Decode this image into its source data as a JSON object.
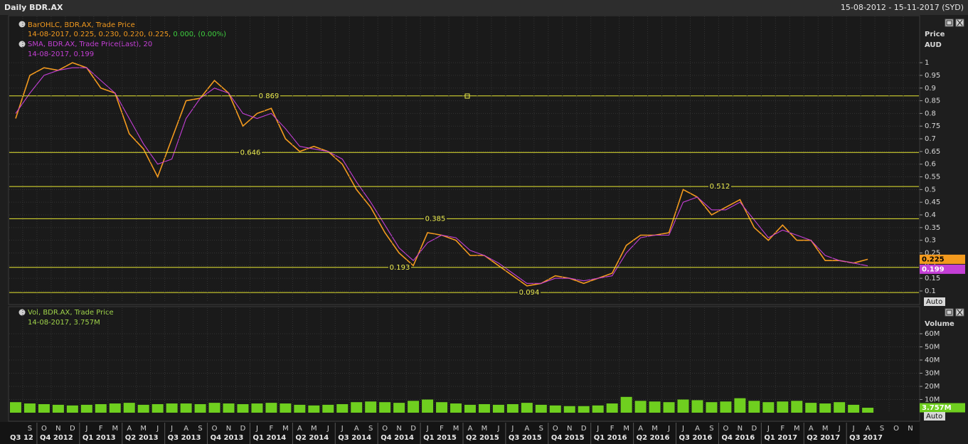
{
  "header": {
    "title": "Daily BDR.AX",
    "range": "15-08-2012 - 15-11-2017 (SYD)"
  },
  "chart_data": [
    {
      "type": "line",
      "x": [
        "2012-08",
        "2012-09",
        "2012-10",
        "2012-11",
        "2012-12",
        "2013-01",
        "2013-02",
        "2013-03",
        "2013-04",
        "2013-05",
        "2013-06",
        "2013-07",
        "2013-08",
        "2013-09",
        "2013-10",
        "2013-11",
        "2013-12",
        "2014-01",
        "2014-02",
        "2014-03",
        "2014-04",
        "2014-05",
        "2014-06",
        "2014-07",
        "2014-08",
        "2014-09",
        "2014-10",
        "2014-11",
        "2014-12",
        "2015-01",
        "2015-02",
        "2015-03",
        "2015-04",
        "2015-05",
        "2015-06",
        "2015-07",
        "2015-08",
        "2015-09",
        "2015-10",
        "2015-11",
        "2015-12",
        "2016-01",
        "2016-02",
        "2016-03",
        "2016-04",
        "2016-05",
        "2016-06",
        "2016-07",
        "2016-08",
        "2016-09",
        "2016-10",
        "2016-11",
        "2016-12",
        "2017-01",
        "2017-02",
        "2017-03",
        "2017-04",
        "2017-05",
        "2017-06",
        "2017-07",
        "2017-08"
      ],
      "series": [
        {
          "name": "BarOHLC, BDR.AX, Trade Price",
          "color": "#f39a1e",
          "readout": "14-08-2017, 0.225, 0.230, 0.220, 0.225, ",
          "change": "0.000, (0.00%)",
          "change_color": "#3ecf3e",
          "values": [
            0.78,
            0.95,
            0.98,
            0.97,
            1.0,
            0.98,
            0.9,
            0.88,
            0.72,
            0.66,
            0.55,
            0.7,
            0.85,
            0.86,
            0.93,
            0.88,
            0.75,
            0.8,
            0.82,
            0.7,
            0.65,
            0.67,
            0.65,
            0.6,
            0.5,
            0.43,
            0.33,
            0.25,
            0.2,
            0.33,
            0.32,
            0.3,
            0.24,
            0.24,
            0.2,
            0.16,
            0.12,
            0.13,
            0.16,
            0.15,
            0.13,
            0.15,
            0.17,
            0.28,
            0.32,
            0.32,
            0.33,
            0.5,
            0.47,
            0.4,
            0.43,
            0.46,
            0.35,
            0.3,
            0.36,
            0.3,
            0.3,
            0.22,
            0.22,
            0.21,
            0.225
          ]
        },
        {
          "name": "SMA, BDR.AX, Trade Price(Last),  20",
          "color": "#c43fd6",
          "readout": "14-08-2017, 0.199",
          "values": [
            0.8,
            0.88,
            0.95,
            0.97,
            0.98,
            0.98,
            0.93,
            0.88,
            0.78,
            0.68,
            0.6,
            0.62,
            0.78,
            0.86,
            0.9,
            0.88,
            0.8,
            0.78,
            0.8,
            0.74,
            0.67,
            0.66,
            0.65,
            0.62,
            0.53,
            0.45,
            0.36,
            0.27,
            0.22,
            0.29,
            0.32,
            0.31,
            0.26,
            0.24,
            0.21,
            0.17,
            0.13,
            0.13,
            0.15,
            0.15,
            0.14,
            0.15,
            0.16,
            0.25,
            0.31,
            0.32,
            0.32,
            0.45,
            0.47,
            0.42,
            0.42,
            0.45,
            0.38,
            0.31,
            0.34,
            0.32,
            0.3,
            0.24,
            0.22,
            0.21,
            0.199
          ]
        }
      ],
      "y_axis_title": "Price",
      "y_axis_unit": "AUD",
      "autoscale_label": "Auto",
      "ylim": [
        0.055,
        1.177
      ],
      "yticks": [
        0.1,
        0.15,
        0.2,
        0.25,
        0.3,
        0.35,
        0.4,
        0.45,
        0.5,
        0.55,
        0.6,
        0.65,
        0.7,
        0.75,
        0.8,
        0.85,
        0.9,
        0.95,
        1
      ],
      "levels": [
        0.869,
        0.646,
        0.512,
        0.385,
        0.193,
        0.094
      ],
      "level_color": "#e6e632",
      "xlim": [
        "2012-08",
        "2017-11"
      ],
      "grid": true
    },
    {
      "type": "bar",
      "x": [
        "2012-08",
        "2012-09",
        "2012-10",
        "2012-11",
        "2012-12",
        "2013-01",
        "2013-02",
        "2013-03",
        "2013-04",
        "2013-05",
        "2013-06",
        "2013-07",
        "2013-08",
        "2013-09",
        "2013-10",
        "2013-11",
        "2013-12",
        "2014-01",
        "2014-02",
        "2014-03",
        "2014-04",
        "2014-05",
        "2014-06",
        "2014-07",
        "2014-08",
        "2014-09",
        "2014-10",
        "2014-11",
        "2014-12",
        "2015-01",
        "2015-02",
        "2015-03",
        "2015-04",
        "2015-05",
        "2015-06",
        "2015-07",
        "2015-08",
        "2015-09",
        "2015-10",
        "2015-11",
        "2015-12",
        "2016-01",
        "2016-02",
        "2016-03",
        "2016-04",
        "2016-05",
        "2016-06",
        "2016-07",
        "2016-08",
        "2016-09",
        "2016-10",
        "2016-11",
        "2016-12",
        "2017-01",
        "2017-02",
        "2017-03",
        "2017-04",
        "2017-05",
        "2017-06",
        "2017-07",
        "2017-08"
      ],
      "series": [
        {
          "name": "Vol, BDR.AX, Trade Price",
          "color": "#6fcf1f",
          "readout": "14-08-2017, 3.757M",
          "values": [
            8000000,
            7000000,
            6500000,
            6000000,
            5500000,
            6000000,
            6500000,
            7000000,
            7500000,
            6000000,
            6500000,
            7000000,
            7000000,
            6500000,
            7500000,
            7000000,
            6500000,
            7000000,
            7500000,
            7000000,
            6000000,
            5500000,
            6000000,
            6500000,
            8000000,
            8500000,
            8000000,
            7500000,
            9000000,
            10000000,
            8000000,
            7000000,
            6000000,
            6500000,
            6000000,
            6500000,
            7500000,
            6000000,
            5500000,
            5000000,
            5000000,
            5500000,
            7000000,
            12000000,
            9000000,
            8500000,
            8000000,
            10000000,
            9500000,
            8000000,
            8500000,
            11000000,
            9000000,
            8000000,
            8500000,
            9000000,
            7500000,
            7000000,
            8000000,
            6000000,
            3757000
          ],
          "value_labels": [
            null,
            null,
            null,
            null,
            null,
            null,
            null,
            null,
            null,
            null,
            null,
            null,
            null,
            null,
            null,
            null,
            null,
            null,
            null,
            null,
            null,
            null,
            null,
            null,
            null,
            null,
            null,
            null,
            null,
            null,
            null,
            null,
            null,
            null,
            null,
            null,
            null,
            null,
            null,
            null,
            null,
            null,
            null,
            null,
            null,
            null,
            null,
            null,
            null,
            null,
            null,
            null,
            null,
            null,
            null,
            null,
            null,
            null,
            null,
            null,
            "3.757M"
          ]
        }
      ],
      "y_axis_title": "Volume",
      "autoscale_label": "Auto",
      "ylim": [
        0,
        80000000
      ],
      "yticks": [
        {
          "value": 10000000,
          "label": "10M"
        },
        {
          "value": 20000000,
          "label": "20M"
        },
        {
          "value": 30000000,
          "label": "30M"
        },
        {
          "value": 40000000,
          "label": "40M"
        },
        {
          "value": 50000000,
          "label": "50M"
        },
        {
          "value": 60000000,
          "label": "60M"
        }
      ],
      "xlim": [
        "2012-08",
        "2017-11"
      ],
      "grid": true,
      "xticks": [
        {
          "value": "2012-09",
          "label": "S"
        },
        {
          "value": "2012-10",
          "label": "O"
        },
        {
          "value": "2012-11",
          "label": "N"
        },
        {
          "value": "2012-12",
          "label": "D"
        },
        {
          "value": "2013-01",
          "label": "J"
        },
        {
          "value": "2013-02",
          "label": "F"
        },
        {
          "value": "2013-03",
          "label": "M"
        },
        {
          "value": "2013-04",
          "label": "A"
        },
        {
          "value": "2013-05",
          "label": "M"
        },
        {
          "value": "2013-06",
          "label": "J"
        },
        {
          "value": "2013-07",
          "label": "J"
        },
        {
          "value": "2013-08",
          "label": "A"
        },
        {
          "value": "2013-09",
          "label": "S"
        },
        {
          "value": "2013-10",
          "label": "O"
        },
        {
          "value": "2013-11",
          "label": "N"
        },
        {
          "value": "2013-12",
          "label": "D"
        },
        {
          "value": "2014-01",
          "label": "J"
        },
        {
          "value": "2014-02",
          "label": "F"
        },
        {
          "value": "2014-03",
          "label": "M"
        },
        {
          "value": "2014-04",
          "label": "A"
        },
        {
          "value": "2014-05",
          "label": "M"
        },
        {
          "value": "2014-06",
          "label": "J"
        },
        {
          "value": "2014-07",
          "label": "J"
        },
        {
          "value": "2014-08",
          "label": "A"
        },
        {
          "value": "2014-09",
          "label": "S"
        },
        {
          "value": "2014-10",
          "label": "O"
        },
        {
          "value": "2014-11",
          "label": "N"
        },
        {
          "value": "2014-12",
          "label": "D"
        },
        {
          "value": "2015-01",
          "label": "J"
        },
        {
          "value": "2015-02",
          "label": "F"
        },
        {
          "value": "2015-03",
          "label": "M"
        },
        {
          "value": "2015-04",
          "label": "A"
        },
        {
          "value": "2015-05",
          "label": "M"
        },
        {
          "value": "2015-06",
          "label": "J"
        },
        {
          "value": "2015-07",
          "label": "J"
        },
        {
          "value": "2015-08",
          "label": "A"
        },
        {
          "value": "2015-09",
          "label": "S"
        },
        {
          "value": "2015-10",
          "label": "O"
        },
        {
          "value": "2015-11",
          "label": "N"
        },
        {
          "value": "2015-12",
          "label": "D"
        },
        {
          "value": "2016-01",
          "label": "J"
        },
        {
          "value": "2016-02",
          "label": "F"
        },
        {
          "value": "2016-03",
          "label": "M"
        },
        {
          "value": "2016-04",
          "label": "A"
        },
        {
          "value": "2016-05",
          "label": "M"
        },
        {
          "value": "2016-06",
          "label": "J"
        },
        {
          "value": "2016-07",
          "label": "J"
        },
        {
          "value": "2016-08",
          "label": "A"
        },
        {
          "value": "2016-09",
          "label": "S"
        },
        {
          "value": "2016-10",
          "label": "O"
        },
        {
          "value": "2016-11",
          "label": "N"
        },
        {
          "value": "2016-12",
          "label": "D"
        },
        {
          "value": "2017-01",
          "label": "J"
        },
        {
          "value": "2017-02",
          "label": "F"
        },
        {
          "value": "2017-03",
          "label": "M"
        },
        {
          "value": "2017-04",
          "label": "A"
        },
        {
          "value": "2017-05",
          "label": "M"
        },
        {
          "value": "2017-06",
          "label": "J"
        },
        {
          "value": "2017-07",
          "label": "J"
        },
        {
          "value": "2017-08",
          "label": "A"
        },
        {
          "value": "2017-09",
          "label": "S"
        },
        {
          "value": "2017-10",
          "label": "O"
        },
        {
          "value": "2017-11",
          "label": "N"
        }
      ],
      "quarter_ticks": [
        {
          "value": "2012-07",
          "label": "Q3 12"
        },
        {
          "value": "2012-10",
          "label": "Q4 2012"
        },
        {
          "value": "2013-01",
          "label": "Q1 2013"
        },
        {
          "value": "2013-04",
          "label": "Q2 2013"
        },
        {
          "value": "2013-07",
          "label": "Q3 2013"
        },
        {
          "value": "2013-10",
          "label": "Q4 2013"
        },
        {
          "value": "2014-01",
          "label": "Q1 2014"
        },
        {
          "value": "2014-04",
          "label": "Q2 2014"
        },
        {
          "value": "2014-07",
          "label": "Q3 2014"
        },
        {
          "value": "2014-10",
          "label": "Q4 2014"
        },
        {
          "value": "2015-01",
          "label": "Q1 2015"
        },
        {
          "value": "2015-04",
          "label": "Q2 2015"
        },
        {
          "value": "2015-07",
          "label": "Q3 2015"
        },
        {
          "value": "2015-10",
          "label": "Q4 2015"
        },
        {
          "value": "2016-01",
          "label": "Q1 2016"
        },
        {
          "value": "2016-04",
          "label": "Q2 2016"
        },
        {
          "value": "2016-07",
          "label": "Q3 2016"
        },
        {
          "value": "2016-10",
          "label": "Q4 2016"
        },
        {
          "value": "2017-01",
          "label": "Q1 2017"
        },
        {
          "value": "2017-04",
          "label": "Q2 2017"
        },
        {
          "value": "2017-07",
          "label": "Q3 2017"
        }
      ]
    }
  ]
}
